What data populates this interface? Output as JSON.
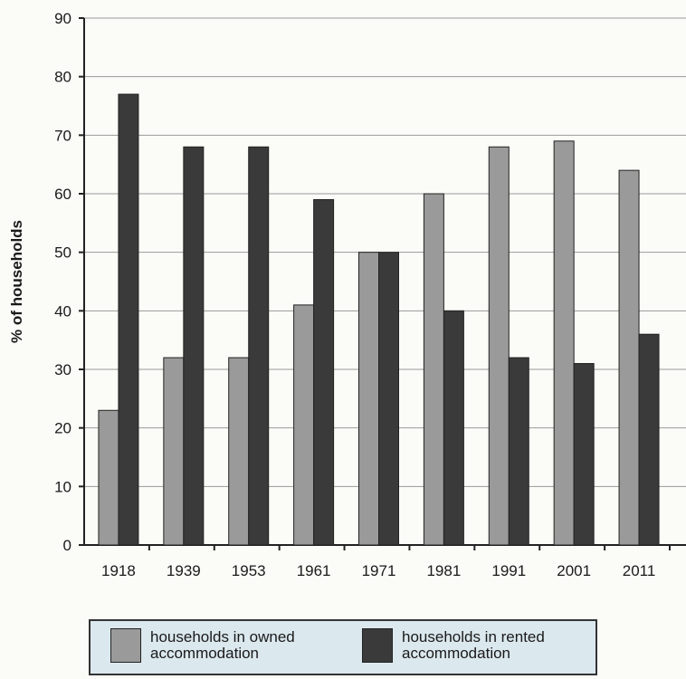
{
  "chart_data": {
    "type": "bar",
    "ylabel": "% of households",
    "xlabel": "",
    "ylim": [
      0,
      90
    ],
    "yticks": [
      0,
      10,
      20,
      30,
      40,
      50,
      60,
      70,
      80,
      90
    ],
    "grid": "horizontal",
    "categories": [
      "1918",
      "1939",
      "1953",
      "1961",
      "1971",
      "1981",
      "1991",
      "2001",
      "2011"
    ],
    "series": [
      {
        "name": "households in owned accommodation",
        "color": "#9a9a9a",
        "values": [
          23,
          32,
          32,
          41,
          50,
          60,
          68,
          69,
          64
        ]
      },
      {
        "name": "households in rented accommodation",
        "color": "#3a3a3a",
        "values": [
          77,
          68,
          68,
          59,
          50,
          40,
          32,
          31,
          36
        ]
      }
    ],
    "legend": "bottom"
  }
}
